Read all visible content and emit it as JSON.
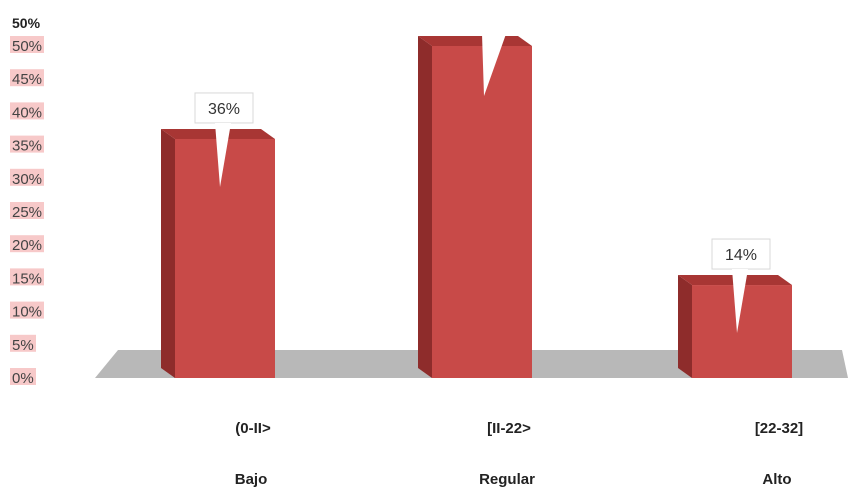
{
  "chart_data": {
    "type": "bar",
    "top_label": "50%",
    "yticks": [
      "0%",
      "5%",
      "10%",
      "15%",
      "20%",
      "25%",
      "30%",
      "35%",
      "40%",
      "45%",
      "50%"
    ],
    "ylim": [
      0,
      50
    ],
    "categories": [
      {
        "range": "(0-II>",
        "name": "Bajo"
      },
      {
        "range": "[II-22>",
        "name": "Regular"
      },
      {
        "range": "[22-32]",
        "name": "Alto"
      }
    ],
    "values": [
      36,
      50,
      14
    ],
    "data_labels": [
      "36%",
      "",
      "14%"
    ],
    "colors": {
      "bar_front": "#c84a48",
      "bar_side": "#8e2c2b",
      "bar_top": "#a83634",
      "floor": "#b8b8b8",
      "tick_highlight": "#f7c9c9"
    }
  }
}
